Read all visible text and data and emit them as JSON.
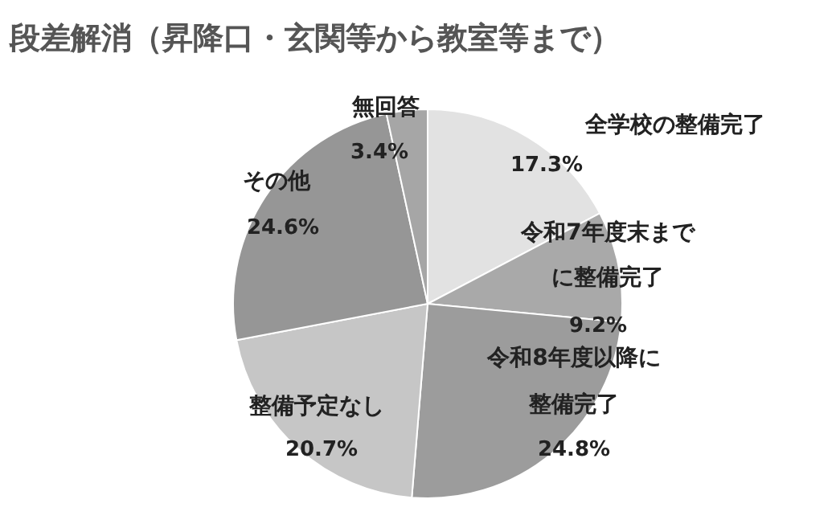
{
  "chart_data": {
    "type": "pie",
    "title": "段差解消（昇降口・玄関等から教室等まで）",
    "categories": [
      "全学校の整備完了",
      "令和7年度末までに整備完了",
      "令和8年度以降に整備完了",
      "整備予定なし",
      "その他",
      "無回答"
    ],
    "values": [
      17.3,
      9.2,
      24.8,
      20.7,
      24.6,
      3.4
    ],
    "colors": [
      "#e2e2e2",
      "#a9a9a9",
      "#9c9c9c",
      "#c6c6c6",
      "#969696",
      "#a6a6a6"
    ],
    "value_labels": [
      "17.3%",
      "9.2%",
      "24.8%",
      "20.7%",
      "24.6%",
      "3.4%"
    ]
  }
}
